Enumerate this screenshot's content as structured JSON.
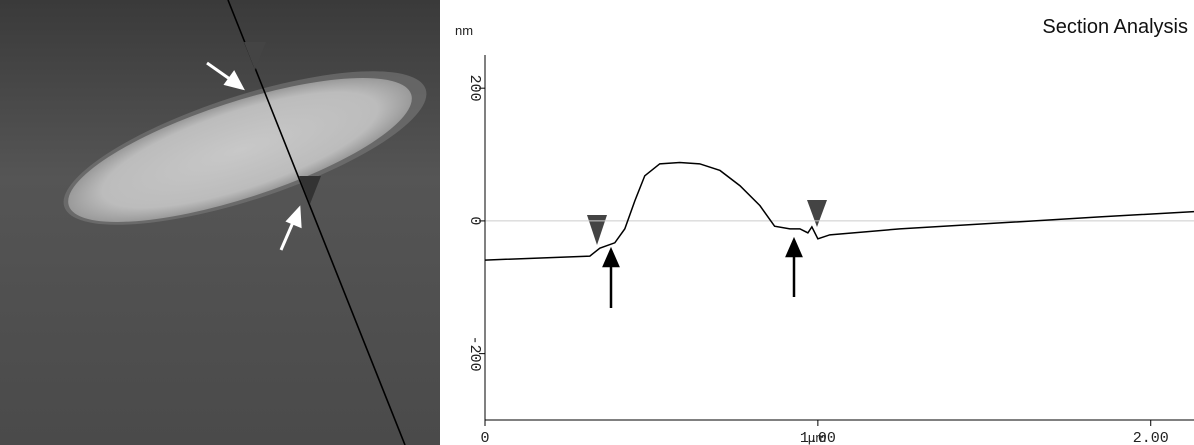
{
  "chart_data": {
    "type": "line",
    "title": "Section Analysis",
    "y_label": "nm",
    "x_label": "µm",
    "x": [
      0,
      0.315,
      0.345,
      0.39,
      0.42,
      0.45,
      0.48,
      0.525,
      0.585,
      0.645,
      0.706,
      0.766,
      0.826,
      0.87,
      0.916,
      0.946,
      0.97,
      0.982,
      1.0,
      1.036,
      1.246,
      1.547,
      1.847,
      2.13
    ],
    "values": [
      -59,
      -53,
      -41,
      -33,
      -12,
      30,
      68,
      86,
      88,
      86,
      76,
      53,
      23,
      -8,
      -12,
      -12,
      -18,
      -9,
      -27,
      -21,
      -12,
      -3,
      6,
      14
    ],
    "color": "#000000",
    "xlim": [
      0,
      2.13
    ],
    "ylim": [
      -300,
      250
    ],
    "xticks": [
      0,
      {
        "value": 1,
        "label": "1.00"
      },
      {
        "value": 2,
        "label": "2.00"
      }
    ],
    "yticks": [
      -200,
      0,
      200
    ]
  }
}
